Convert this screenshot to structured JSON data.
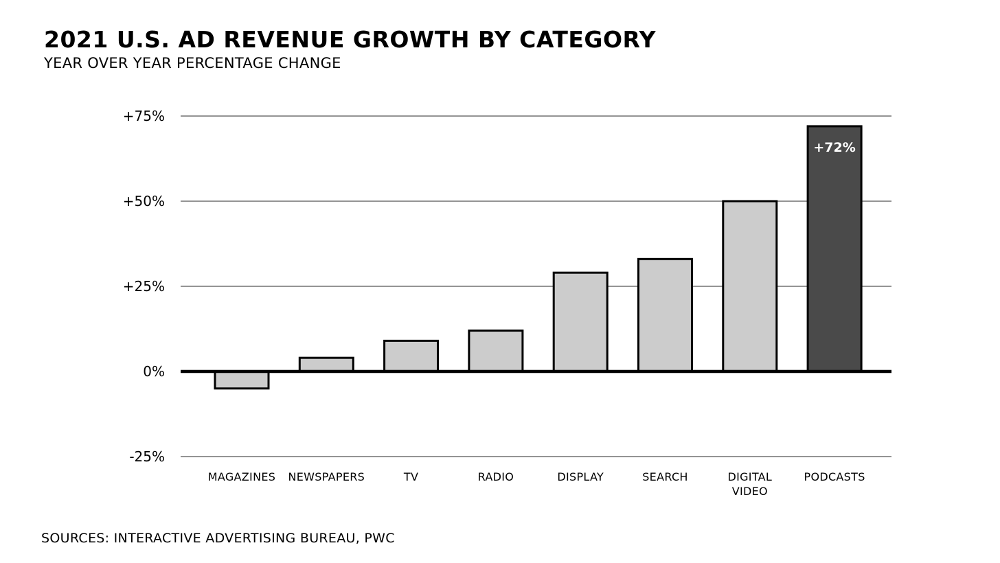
{
  "chart_data": {
    "type": "bar",
    "title": "2021 U.S. AD REVENUE GROWTH BY CATEGORY",
    "subtitle": "YEAR OVER YEAR PERCENTAGE CHANGE",
    "categories": [
      "MAGAZINES",
      "NEWSPAPERS",
      "TV",
      "RADIO",
      "DISPLAY",
      "SEARCH",
      "DIGITAL VIDEO",
      "PODCASTS"
    ],
    "values": [
      -5,
      4,
      9,
      12,
      29,
      33,
      50,
      72
    ],
    "ylim": [
      -25,
      75
    ],
    "yticks": [
      -25,
      0,
      25,
      50,
      75
    ],
    "ytick_labels": [
      "-25%",
      "0%",
      "+25%",
      "+50%",
      "+75%"
    ],
    "grid": true,
    "data_labels": [
      {
        "category": "PODCASTS",
        "text": "+72%"
      }
    ],
    "highlight_category": "PODCASTS",
    "colors": {
      "bar": "#cccccc",
      "highlight": "#4a4a4a",
      "outline": "#000000",
      "grid": "#555555"
    },
    "source": "SOURCES: INTERACTIVE ADVERTISING BUREAU, PWC"
  }
}
